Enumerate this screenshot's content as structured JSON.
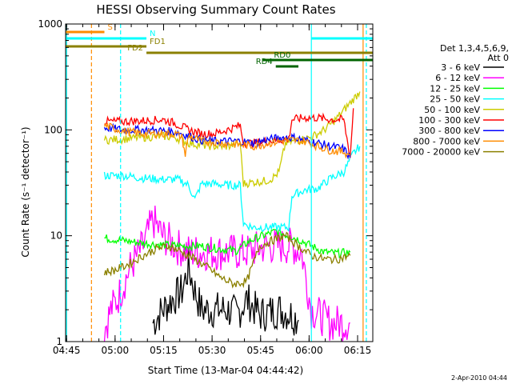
{
  "chart_data": {
    "type": "line",
    "title": "HESSI Observing Summary Count Rates",
    "xlabel": "Start Time (13-Mar-04 04:44:42)",
    "ylabel": "Count Rate (s⁻¹ detector⁻¹)",
    "x_ticks": [
      "04:45",
      "05:00",
      "05:15",
      "05:30",
      "05:45",
      "06:00",
      "06:15"
    ],
    "y_scale": "log",
    "y_ticks": [
      "1",
      "10",
      "100",
      "1000"
    ],
    "ylim": [
      1,
      1000
    ],
    "xlim_minutes": [
      0,
      95
    ],
    "legend_header": [
      "Det 1,3,4,5,6,9,",
      "Att 0"
    ],
    "legend_position": "right",
    "series": [
      {
        "name": "3 - 6 keV",
        "color": "#000000",
        "points": [
          [
            27,
            1.5
          ],
          [
            30,
            2
          ],
          [
            33,
            2.5
          ],
          [
            36,
            3
          ],
          [
            38,
            5
          ],
          [
            40,
            3
          ],
          [
            42,
            2
          ],
          [
            45,
            2
          ],
          [
            50,
            2
          ],
          [
            53,
            1.8
          ],
          [
            56,
            2.5
          ],
          [
            60,
            1.8
          ],
          [
            66,
            2
          ],
          [
            70,
            1.8
          ],
          [
            72,
            1.6
          ]
        ]
      },
      {
        "name": "6 - 12 keV",
        "color": "#ff00ff",
        "points": [
          [
            12,
            1.3
          ],
          [
            14,
            2
          ],
          [
            16,
            2.5
          ],
          [
            20,
            5
          ],
          [
            24,
            8
          ],
          [
            27,
            14
          ],
          [
            30,
            10
          ],
          [
            34,
            8
          ],
          [
            38,
            7
          ],
          [
            44,
            7
          ],
          [
            50,
            7
          ],
          [
            56,
            7
          ],
          [
            62,
            8
          ],
          [
            66,
            8
          ],
          [
            70,
            8
          ],
          [
            73,
            7
          ],
          [
            76,
            2
          ],
          [
            82,
            1.5
          ],
          [
            88,
            1.5
          ]
        ]
      },
      {
        "name": "12 - 25 keV",
        "color": "#00ff00",
        "points": [
          [
            12,
            9.5
          ],
          [
            18,
            9
          ],
          [
            24,
            8.5
          ],
          [
            30,
            8.2
          ],
          [
            36,
            8
          ],
          [
            42,
            8
          ],
          [
            48,
            7.5
          ],
          [
            53,
            7.2
          ],
          [
            57,
            9
          ],
          [
            61,
            10
          ],
          [
            65,
            11
          ],
          [
            69,
            10
          ],
          [
            73,
            9
          ],
          [
            76,
            8
          ],
          [
            80,
            7
          ],
          [
            84,
            6.8
          ],
          [
            88,
            7
          ]
        ]
      },
      {
        "name": "25 - 50 keV",
        "color": "#00ffff",
        "points": [
          [
            12,
            37
          ],
          [
            18,
            37
          ],
          [
            24,
            35
          ],
          [
            30,
            34
          ],
          [
            35,
            34
          ],
          [
            38,
            30
          ],
          [
            40,
            22
          ],
          [
            42,
            31
          ],
          [
            46,
            31
          ],
          [
            50,
            30
          ],
          [
            54,
            30
          ],
          [
            55,
            13
          ],
          [
            58,
            12
          ],
          [
            62,
            12
          ],
          [
            66,
            12
          ],
          [
            69,
            12
          ],
          [
            70,
            24
          ],
          [
            74,
            27
          ],
          [
            78,
            28
          ],
          [
            82,
            35
          ],
          [
            86,
            40
          ],
          [
            89,
            60
          ],
          [
            91,
            70
          ]
        ]
      },
      {
        "name": "50 - 100 keV",
        "color": "#cccc00",
        "points": [
          [
            12,
            80
          ],
          [
            18,
            82
          ],
          [
            24,
            85
          ],
          [
            30,
            87
          ],
          [
            34,
            85
          ],
          [
            38,
            75
          ],
          [
            42,
            72
          ],
          [
            46,
            70
          ],
          [
            50,
            70
          ],
          [
            54,
            74
          ],
          [
            55,
            31
          ],
          [
            58,
            32
          ],
          [
            62,
            33
          ],
          [
            64,
            35
          ],
          [
            66,
            40
          ],
          [
            68,
            75
          ],
          [
            72,
            80
          ],
          [
            76,
            85
          ],
          [
            80,
            100
          ],
          [
            84,
            130
          ],
          [
            88,
            180
          ],
          [
            91,
            230
          ]
        ]
      },
      {
        "name": "100 - 300 keV",
        "color": "#ff0000",
        "points": [
          [
            12,
            120
          ],
          [
            18,
            120
          ],
          [
            24,
            122
          ],
          [
            30,
            125
          ],
          [
            34,
            115
          ],
          [
            38,
            100
          ],
          [
            42,
            92
          ],
          [
            46,
            92
          ],
          [
            50,
            100
          ],
          [
            54,
            110
          ],
          [
            55,
            75
          ],
          [
            58,
            75
          ],
          [
            62,
            78
          ],
          [
            66,
            80
          ],
          [
            69,
            82
          ],
          [
            70,
            125
          ],
          [
            74,
            130
          ],
          [
            78,
            130
          ],
          [
            82,
            125
          ],
          [
            86,
            125
          ],
          [
            88,
            55
          ],
          [
            89,
            160
          ]
        ]
      },
      {
        "name": "300 - 800 keV",
        "color": "#0000ff",
        "points": [
          [
            12,
            105
          ],
          [
            18,
            100
          ],
          [
            24,
            100
          ],
          [
            30,
            98
          ],
          [
            34,
            96
          ],
          [
            38,
            88
          ],
          [
            42,
            80
          ],
          [
            46,
            78
          ],
          [
            50,
            78
          ],
          [
            54,
            78
          ],
          [
            58,
            75
          ],
          [
            62,
            80
          ],
          [
            66,
            84
          ],
          [
            70,
            85
          ],
          [
            74,
            80
          ],
          [
            78,
            75
          ],
          [
            82,
            70
          ],
          [
            86,
            66
          ],
          [
            88,
            55
          ]
        ]
      },
      {
        "name": "800 - 7000 keV",
        "color": "#ff8c00",
        "points": [
          [
            12,
            110
          ],
          [
            18,
            97
          ],
          [
            24,
            92
          ],
          [
            30,
            92
          ],
          [
            34,
            92
          ],
          [
            36,
            85
          ],
          [
            37,
            58
          ],
          [
            38,
            88
          ],
          [
            42,
            78
          ],
          [
            46,
            77
          ],
          [
            50,
            74
          ],
          [
            54,
            73
          ],
          [
            58,
            70
          ],
          [
            62,
            74
          ],
          [
            66,
            78
          ],
          [
            70,
            80
          ],
          [
            74,
            78
          ],
          [
            78,
            70
          ],
          [
            82,
            64
          ],
          [
            86,
            62
          ],
          [
            88,
            58
          ]
        ]
      },
      {
        "name": "7000 - 20000 keV",
        "color": "#8b8000",
        "points": [
          [
            12,
            4.5
          ],
          [
            16,
            4.8
          ],
          [
            20,
            5.5
          ],
          [
            24,
            6.5
          ],
          [
            28,
            7.5
          ],
          [
            32,
            8
          ],
          [
            36,
            7
          ],
          [
            40,
            6
          ],
          [
            44,
            5
          ],
          [
            48,
            4
          ],
          [
            52,
            3.5
          ],
          [
            56,
            3.7
          ],
          [
            60,
            8
          ],
          [
            64,
            9
          ],
          [
            68,
            10
          ],
          [
            70,
            9
          ],
          [
            72,
            8
          ],
          [
            76,
            6.5
          ],
          [
            80,
            6
          ],
          [
            84,
            6
          ],
          [
            88,
            6.5
          ]
        ]
      }
    ],
    "flags": [
      {
        "label": "S",
        "color": "#ff8c00",
        "x_start": 0,
        "x_end": 12
      },
      {
        "label": "N",
        "color": "#00ffff",
        "x_start": 0,
        "x_end": 25
      },
      {
        "label": "FD1",
        "color": "#8b8000",
        "x_start": 0,
        "x_end": 25
      },
      {
        "label": "FD2",
        "color": "#8b8000",
        "x_start": 25,
        "x_end": 95
      },
      {
        "label": "RD0",
        "color": "#006400",
        "x_start": 61,
        "x_end": 95
      },
      {
        "label": "RD4",
        "color": "#006400",
        "x_start": 65,
        "x_end": 72
      }
    ],
    "timestamp": "2-Apr-2010 04:44"
  }
}
